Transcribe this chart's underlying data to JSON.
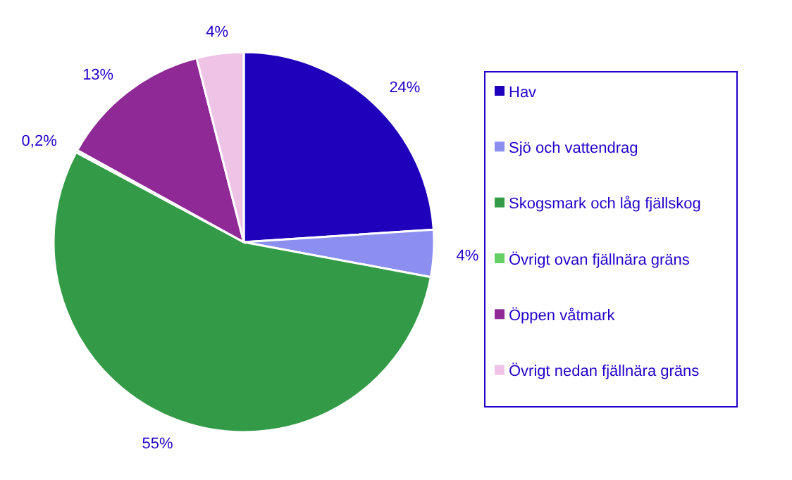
{
  "chart_data": {
    "type": "pie",
    "categories": [
      "Hav",
      "Sjö och vattendrag",
      "Skogsmark och låg fjällskog",
      "Övrigt ovan fjällnära gräns",
      "Öppen våtmark",
      "Övrigt nedan fjällnära gräns"
    ],
    "values": [
      24,
      4,
      55,
      0.2,
      13,
      4
    ],
    "value_labels": [
      "24%",
      "4%",
      "55%",
      "0,2%",
      "13%",
      "4%"
    ],
    "colors": [
      "#1f00bb",
      "#8c8ff0",
      "#339b47",
      "#66d066",
      "#8e2996",
      "#efc3e6"
    ],
    "legend": "right"
  }
}
